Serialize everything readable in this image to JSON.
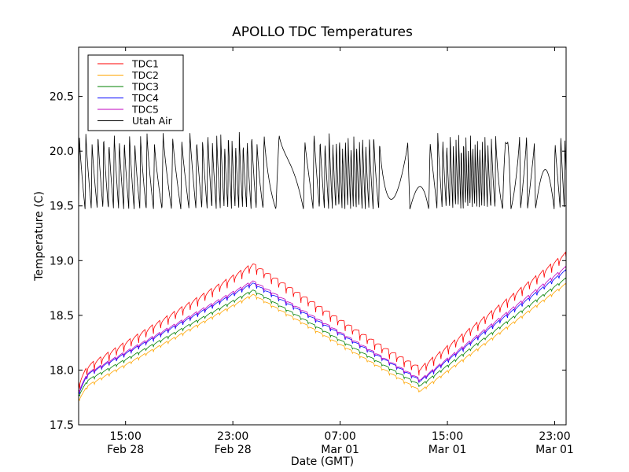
{
  "chart_data": {
    "type": "line",
    "title": "APOLLO TDC Temperatures",
    "xlabel": "Date (GMT)",
    "ylabel": "Temperature (C)",
    "xlim_hours_from_feb28_0000": [
      11.5,
      47.85
    ],
    "ylim": [
      17.5,
      20.95
    ],
    "grid": false,
    "legend_position": "top-left",
    "x_ticks": [
      {
        "hour": 15,
        "label_time": "15:00",
        "label_date": "Feb 28"
      },
      {
        "hour": 23,
        "label_time": "23:00",
        "label_date": "Feb 28"
      },
      {
        "hour": 31,
        "label_time": "07:00",
        "label_date": "Mar 01"
      },
      {
        "hour": 39,
        "label_time": "15:00",
        "label_date": "Mar 01"
      },
      {
        "hour": 47,
        "label_time": "23:00",
        "label_date": "Mar 01"
      }
    ],
    "y_ticks": [
      {
        "value": 17.5,
        "label": "17.5"
      },
      {
        "value": 18.0,
        "label": "18.0"
      },
      {
        "value": 18.5,
        "label": "18.5"
      },
      {
        "value": 19.0,
        "label": "19.0"
      },
      {
        "value": 19.5,
        "label": "19.5"
      },
      {
        "value": 20.0,
        "label": "20.0"
      },
      {
        "value": 20.5,
        "label": "20.5"
      }
    ],
    "series": [
      {
        "name": "TDC1",
        "color": "#ff0000",
        "ripple": 0.1,
        "trend": [
          [
            11.5,
            17.85
          ],
          [
            12.2,
            18.0
          ],
          [
            24.5,
            18.93
          ],
          [
            34.5,
            18.15
          ],
          [
            37.0,
            17.98
          ],
          [
            47.85,
            19.03
          ]
        ]
      },
      {
        "name": "TDC2",
        "color": "#ffa500",
        "ripple": 0.03,
        "trend": [
          [
            11.5,
            17.72
          ],
          [
            12.2,
            17.85
          ],
          [
            24.5,
            18.68
          ],
          [
            34.5,
            17.98
          ],
          [
            37.0,
            17.8
          ],
          [
            47.85,
            18.78
          ]
        ]
      },
      {
        "name": "TDC3",
        "color": "#008000",
        "ripple": 0.03,
        "trend": [
          [
            11.5,
            17.76
          ],
          [
            12.2,
            17.9
          ],
          [
            24.5,
            18.72
          ],
          [
            34.5,
            18.02
          ],
          [
            37.0,
            17.85
          ],
          [
            47.85,
            18.83
          ]
        ]
      },
      {
        "name": "TDC4",
        "color": "#0000ff",
        "ripple": 0.04,
        "trend": [
          [
            11.5,
            17.78
          ],
          [
            12.2,
            17.95
          ],
          [
            24.5,
            18.78
          ],
          [
            34.5,
            18.07
          ],
          [
            37.0,
            17.89
          ],
          [
            47.85,
            18.9
          ]
        ]
      },
      {
        "name": "TDC5",
        "color": "#bf00bf",
        "ripple": 0.04,
        "trend": [
          [
            11.5,
            17.8
          ],
          [
            12.2,
            17.96
          ],
          [
            24.5,
            18.8
          ],
          [
            34.5,
            18.08
          ],
          [
            37.0,
            17.9
          ],
          [
            47.85,
            18.93
          ]
        ]
      },
      {
        "name": "Utah Air",
        "color": "#000000",
        "low": 19.47,
        "high": 20.13,
        "period_hours": 0.45
      }
    ]
  }
}
